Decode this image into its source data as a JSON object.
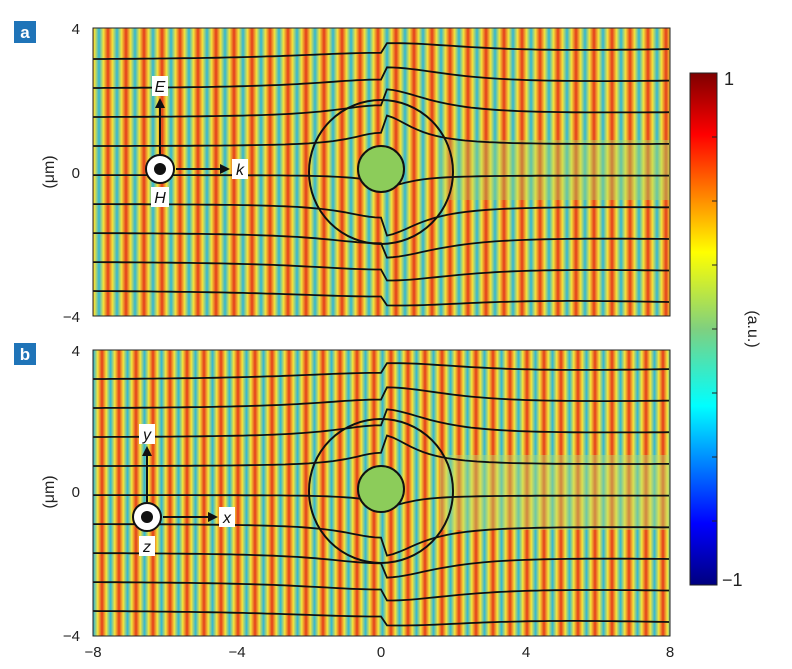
{
  "panels": [
    {
      "letter": "a",
      "y_ticks": [
        "4",
        "0",
        "−4"
      ],
      "y_label": "(μm)",
      "vectors": {
        "up": "E",
        "right": "k",
        "center": "H"
      }
    },
    {
      "letter": "b",
      "y_ticks": [
        "4",
        "0",
        "−4"
      ],
      "y_label": "(μm)",
      "vectors": {
        "up": "y",
        "right": "x",
        "center": "z"
      }
    }
  ],
  "x_ticks": [
    "−8",
    "−4",
    "0",
    "4",
    "8"
  ],
  "colorbar": {
    "max_label": "1",
    "min_label": "−1",
    "label": "(a.u.)"
  },
  "chart_data": [
    {
      "type": "heatmap",
      "panel": "a",
      "xlim": [
        -8,
        8
      ],
      "ylim": [
        -4,
        4
      ],
      "color_range": [
        -1,
        1
      ],
      "inner_circle_radius": 0.7,
      "outer_circle_radius": 2.0,
      "circle_center": [
        0,
        0
      ]
    },
    {
      "type": "heatmap",
      "panel": "b",
      "xlim": [
        -8,
        8
      ],
      "ylim": [
        -4,
        4
      ],
      "color_range": [
        -1,
        1
      ],
      "inner_circle_radius": 0.7,
      "outer_circle_radius": 2.0,
      "circle_center": [
        0,
        0
      ]
    }
  ]
}
